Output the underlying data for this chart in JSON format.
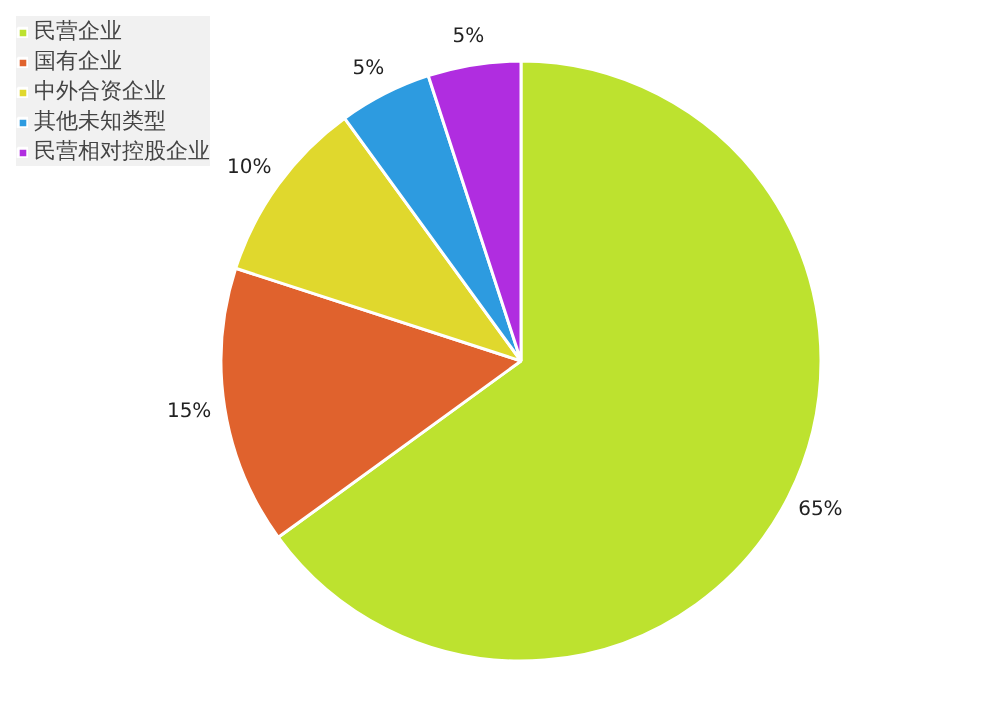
{
  "chart_data": {
    "type": "pie",
    "categories": [
      "民营企业",
      "国有企业",
      "中外合资企业",
      "其他未知类型",
      "民营相对控股企业"
    ],
    "values": [
      65,
      15,
      10,
      5,
      5
    ],
    "colors": [
      "#bde22f",
      "#e0622d",
      "#e0d82d",
      "#2d9be0",
      "#b02de0"
    ],
    "value_labels": [
      "65%",
      "15%",
      "10%",
      "5%",
      "5%"
    ],
    "legend": "top left"
  }
}
